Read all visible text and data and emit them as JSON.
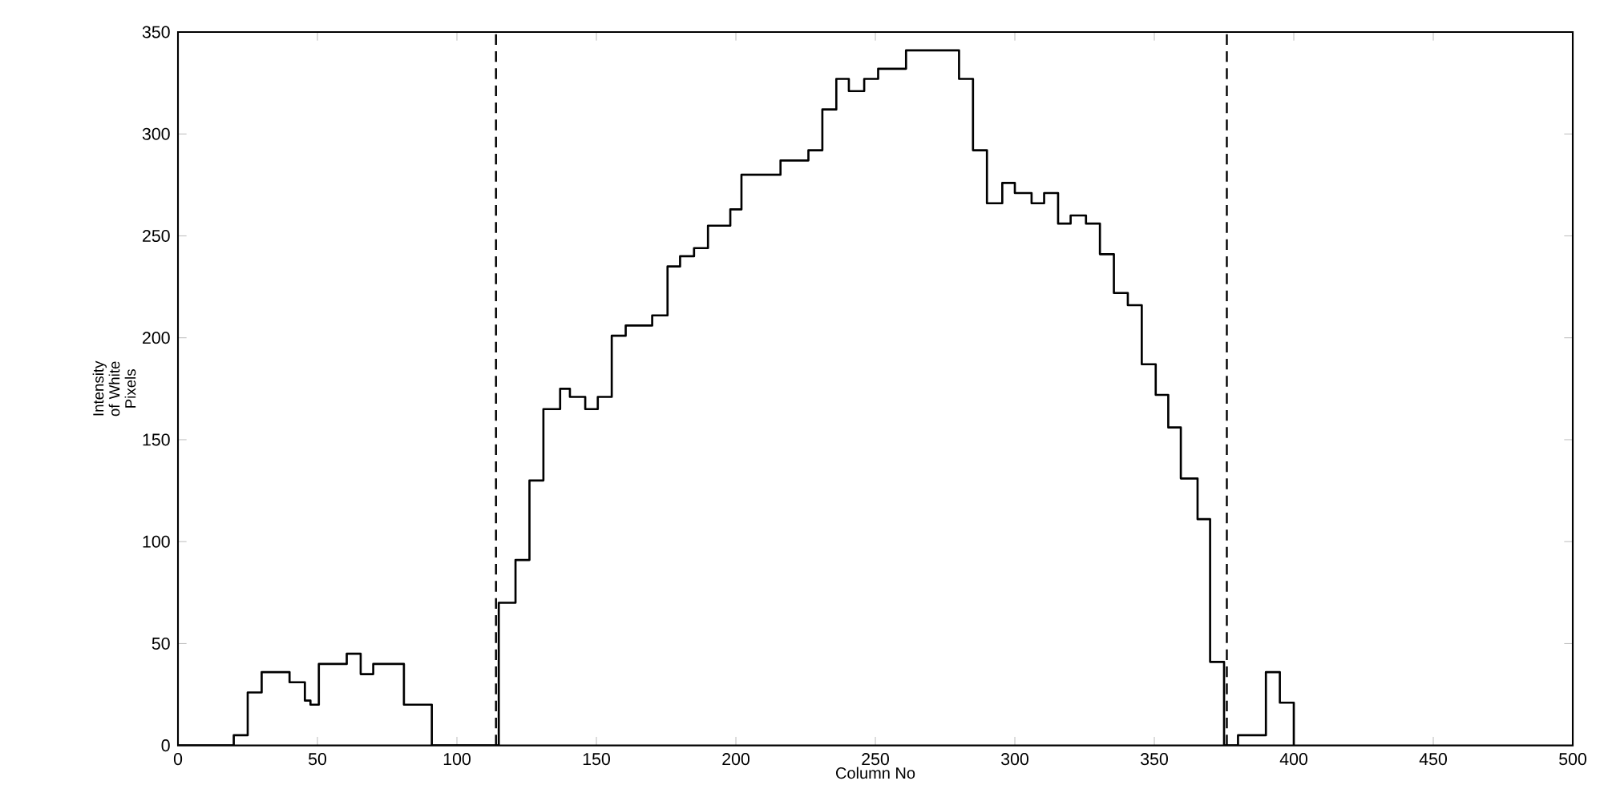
{
  "chart_data": {
    "type": "step",
    "xlabel": "Column No",
    "ylabel": "Intensity of White Pixels",
    "color": "#000000",
    "x": [
      0,
      20,
      25,
      30,
      40,
      45.5,
      47.5,
      50.5,
      60.5,
      65.5,
      70,
      81,
      91,
      115,
      121,
      126,
      131,
      137,
      140.5,
      146,
      150.5,
      155.5,
      160.5,
      170,
      175.5,
      180,
      185,
      190,
      198,
      202,
      216,
      226,
      231,
      236,
      240.5,
      246,
      251,
      261,
      280,
      285,
      290,
      295.5,
      300,
      306,
      310.5,
      315.5,
      320,
      325.5,
      330.5,
      335.5,
      340.5,
      345.5,
      350.5,
      355,
      359.5,
      365.5,
      370,
      375,
      380,
      390,
      395,
      400
    ],
    "values": [
      0,
      5,
      26,
      36,
      31,
      22,
      20,
      40,
      45,
      35,
      40,
      20,
      0,
      70,
      91,
      130,
      165,
      175,
      171,
      165,
      171,
      201,
      206,
      211,
      235,
      240,
      244,
      255,
      263,
      280,
      287,
      292,
      312,
      327,
      321,
      327,
      332,
      341,
      327,
      292,
      266,
      276,
      271,
      266,
      271,
      256,
      260,
      256,
      241,
      222,
      216,
      187,
      172,
      156,
      131,
      111,
      41,
      0,
      5,
      36,
      21,
      0
    ],
    "xlim": [
      0,
      500
    ],
    "ylim": [
      0,
      350
    ],
    "xticks": [
      0,
      50,
      100,
      150,
      200,
      250,
      300,
      350,
      400,
      450,
      500
    ],
    "yticks": [
      0,
      50,
      100,
      150,
      200,
      250,
      300,
      350
    ],
    "ref_lines": [
      {
        "axis": "x",
        "value": 114,
        "line_style": "dashed"
      },
      {
        "axis": "x",
        "value": 376,
        "line_style": "dashed"
      }
    ]
  }
}
